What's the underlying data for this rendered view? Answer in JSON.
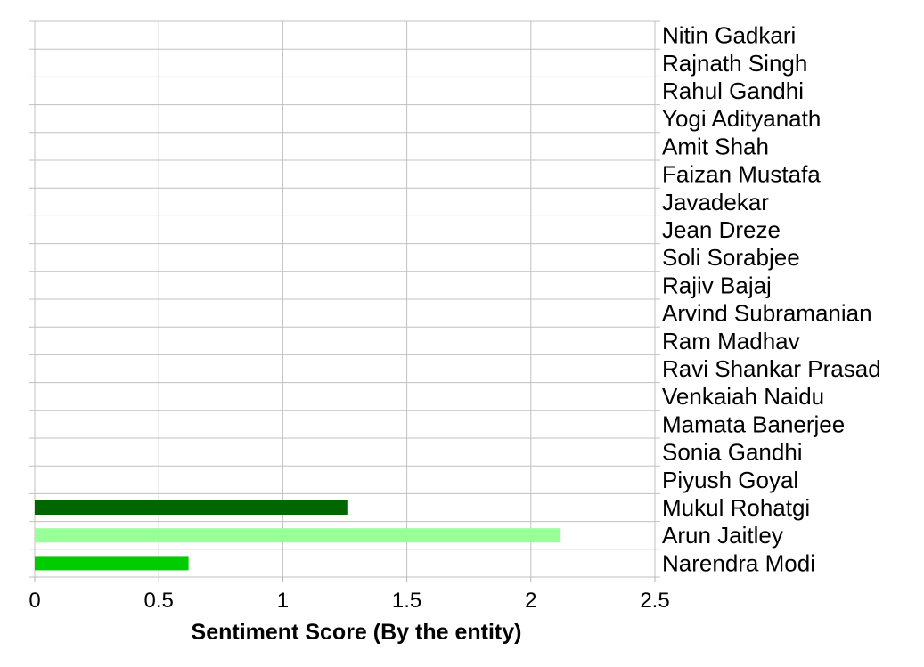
{
  "chart_data": {
    "type": "bar",
    "orientation": "horizontal",
    "title": "",
    "xlabel": "Sentiment Score (By the entity)",
    "ylabel": "",
    "xlim": [
      0,
      2.5
    ],
    "xticks": [
      "0",
      "0.5",
      "1",
      "1.5",
      "2",
      "2.5"
    ],
    "grid": true,
    "categories": [
      "Nitin Gadkari",
      "Rajnath Singh",
      "Rahul Gandhi",
      "Yogi Adityanath",
      "Amit Shah",
      "Faizan Mustafa",
      "Javadekar",
      "Jean Dreze",
      "Soli Sorabjee",
      "Rajiv Bajaj",
      "Arvind Subramanian",
      "Ram Madhav",
      "Ravi Shankar Prasad",
      "Venkaiah Naidu",
      "Mamata Banerjee",
      "Sonia Gandhi",
      "Piyush Goyal",
      "Mukul Rohatgi",
      "Arun Jaitley",
      "Narendra Modi"
    ],
    "values": [
      0,
      0,
      0,
      0,
      0,
      0,
      0,
      0,
      0,
      0,
      0,
      0,
      0,
      0,
      0,
      0,
      0,
      1.26,
      2.12,
      0.62
    ],
    "colors": [
      "#00cc00",
      "#00cc00",
      "#00cc00",
      "#00cc00",
      "#00cc00",
      "#00cc00",
      "#00cc00",
      "#00cc00",
      "#00cc00",
      "#00cc00",
      "#00cc00",
      "#00cc00",
      "#00cc00",
      "#00cc00",
      "#00cc00",
      "#00cc00",
      "#00cc00",
      "#006600",
      "#99ff99",
      "#00cc00"
    ]
  }
}
